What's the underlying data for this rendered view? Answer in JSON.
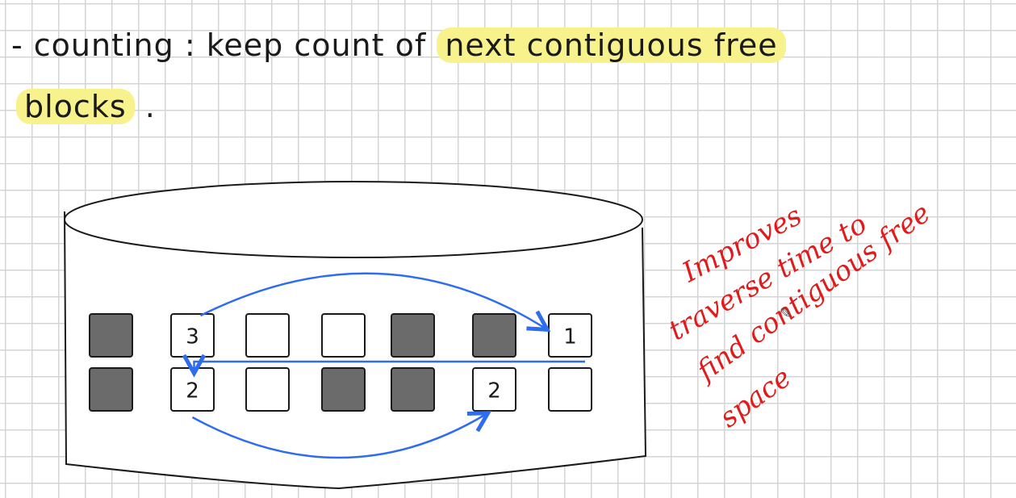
{
  "notes": {
    "line1_prefix": "- counting : keep count of",
    "line1_highlight": "next contiguous free",
    "line2_highlight": "blocks",
    "line2_suffix": "."
  },
  "disk": {
    "rows": [
      [
        {
          "state": "used",
          "label": ""
        },
        {
          "state": "free",
          "label": "3"
        },
        {
          "state": "free",
          "label": ""
        },
        {
          "state": "free",
          "label": ""
        },
        {
          "state": "used",
          "label": ""
        },
        {
          "state": "used",
          "label": ""
        },
        {
          "state": "free",
          "label": "1"
        }
      ],
      [
        {
          "state": "used",
          "label": ""
        },
        {
          "state": "free",
          "label": "2"
        },
        {
          "state": "free",
          "label": ""
        },
        {
          "state": "used",
          "label": ""
        },
        {
          "state": "used",
          "label": ""
        },
        {
          "state": "free",
          "label": "2"
        },
        {
          "state": "free",
          "label": ""
        }
      ]
    ],
    "links": [
      {
        "from": [
          0,
          1
        ],
        "to": [
          0,
          6
        ]
      },
      {
        "from": [
          0,
          6
        ],
        "to": [
          1,
          1
        ]
      },
      {
        "from": [
          1,
          1
        ],
        "to": [
          1,
          5
        ]
      }
    ]
  },
  "annotation": {
    "lines": [
      "Improves",
      "traverse time to",
      "find contiguous free",
      "space"
    ]
  },
  "colors": {
    "used_block": "#6b6b6b",
    "free_block": "#ffffff",
    "arrow": "#2e6cf0",
    "annotation": "#e01b1b",
    "highlight": "#f7f28c"
  }
}
